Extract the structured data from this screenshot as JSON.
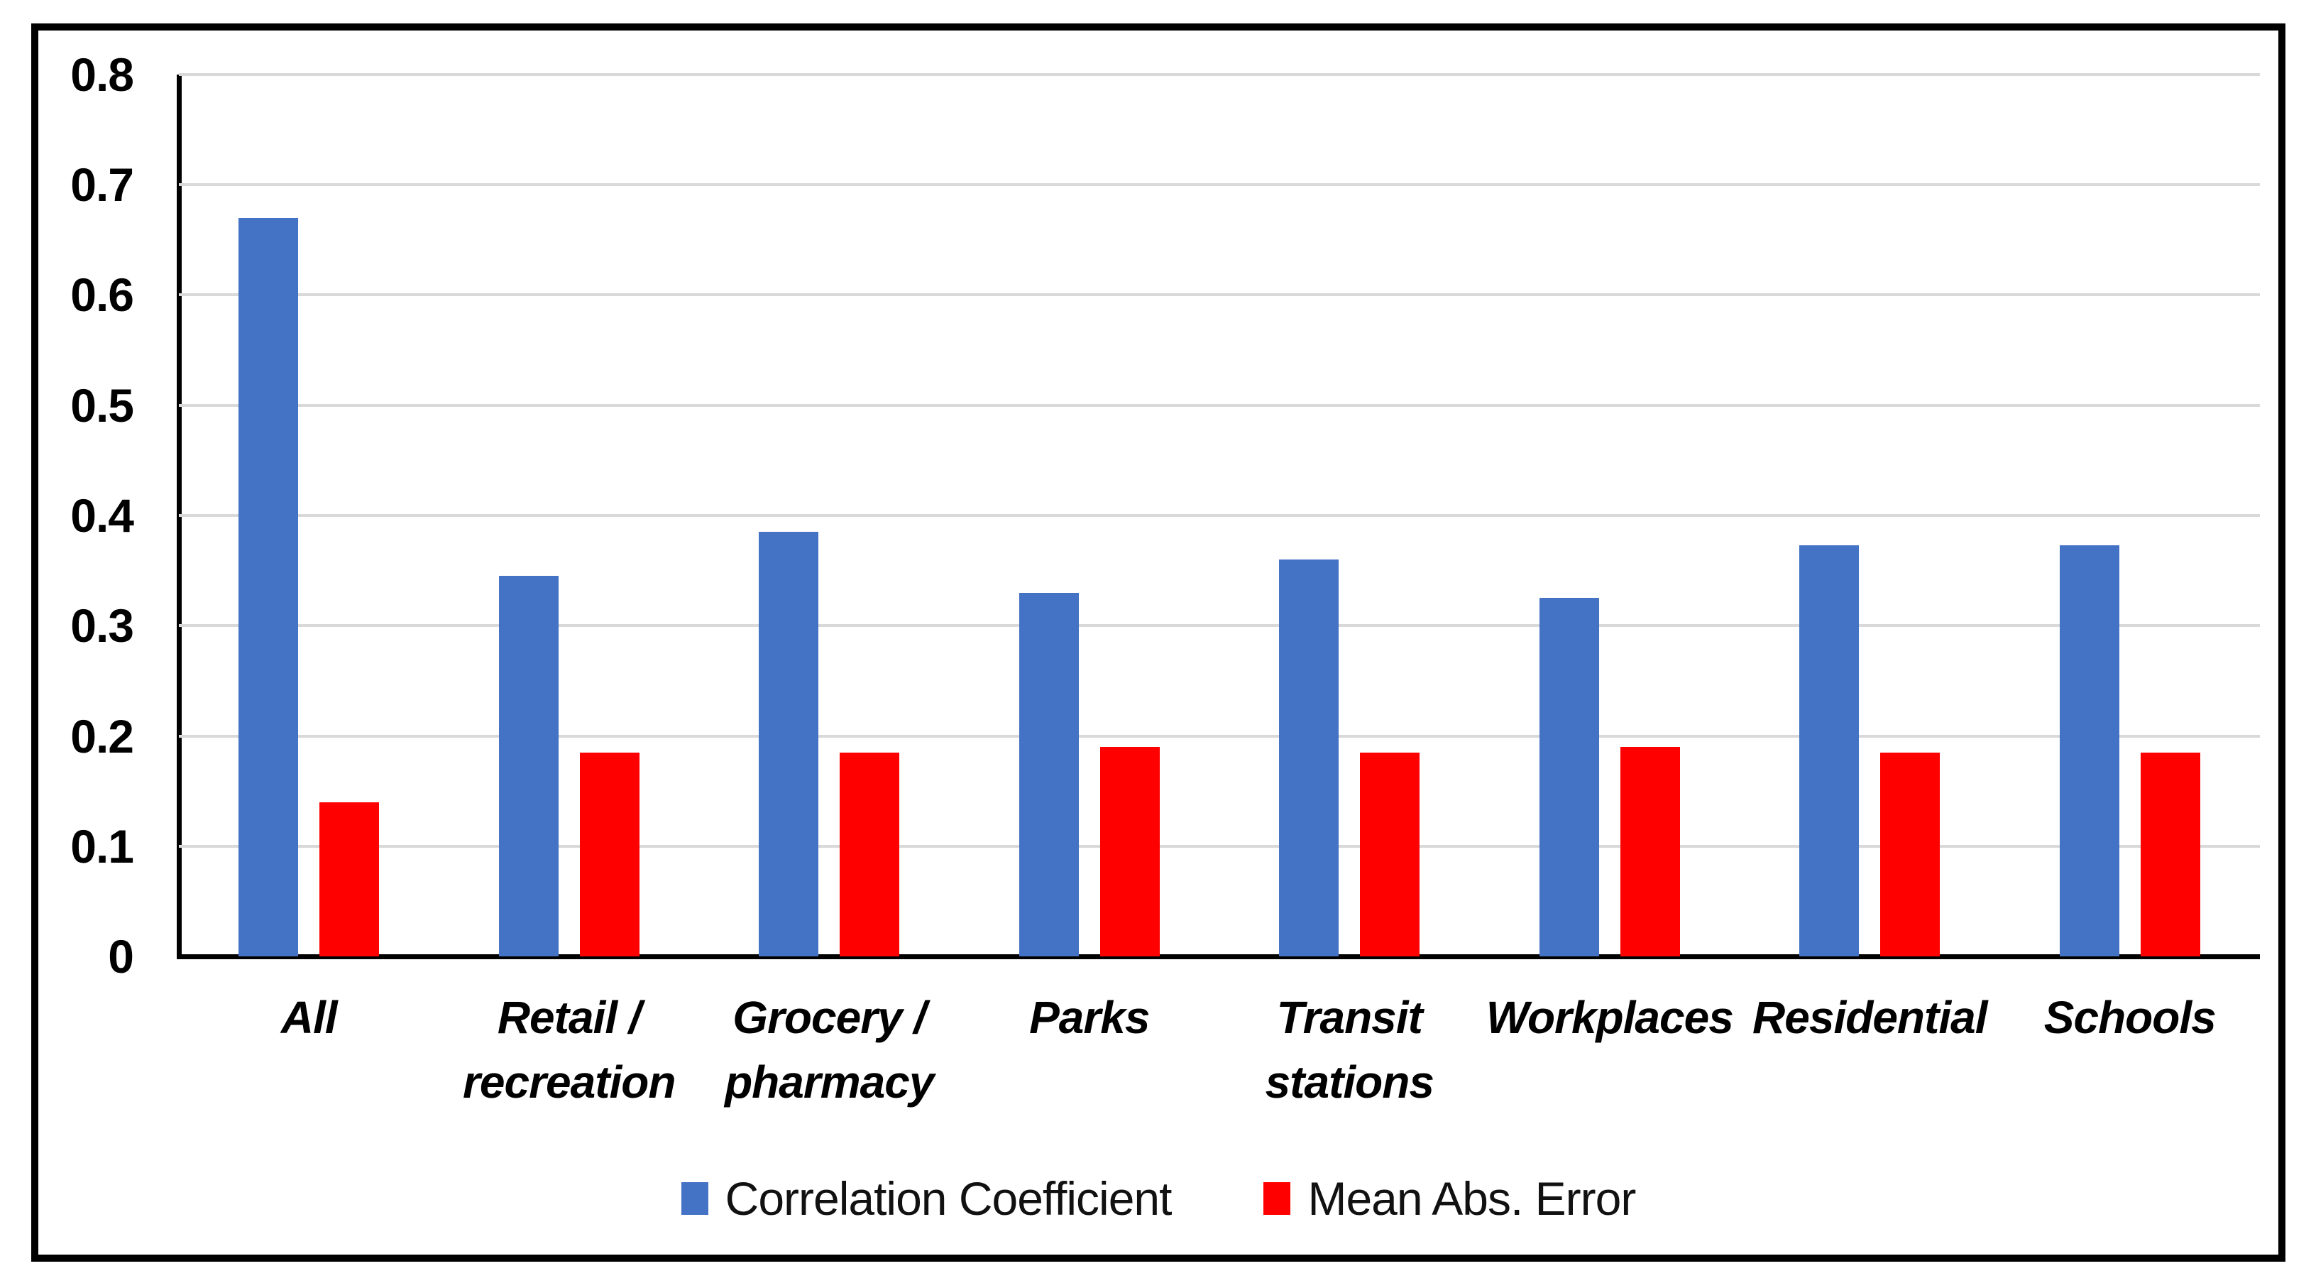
{
  "chart_data": {
    "type": "bar",
    "categories": [
      "All",
      "Retail /\nrecreation",
      "Grocery /\npharmacy",
      "Parks",
      "Transit\nstations",
      "Workplaces",
      "Residential",
      "Schools"
    ],
    "series": [
      {
        "name": "Correlation Coefficient",
        "color": "#4472C4",
        "values": [
          0.67,
          0.345,
          0.385,
          0.33,
          0.36,
          0.325,
          0.373,
          0.373
        ]
      },
      {
        "name": "Mean Abs. Error",
        "color": "#FF0000",
        "values": [
          0.14,
          0.185,
          0.185,
          0.19,
          0.185,
          0.19,
          0.185,
          0.185
        ]
      }
    ],
    "title": "",
    "xlabel": "",
    "ylabel": "",
    "ylim": [
      0,
      0.8
    ],
    "ytick_step": 0.1,
    "yticks": [
      "0",
      "0.1",
      "0.2",
      "0.3",
      "0.4",
      "0.5",
      "0.6",
      "0.7",
      "0.8"
    ],
    "grid": true,
    "legend_position": "bottom",
    "colors": {
      "gridline": "#D9D9D9",
      "axis": "#000000",
      "frame_border": "#000000",
      "background": "#FFFFFF"
    }
  }
}
